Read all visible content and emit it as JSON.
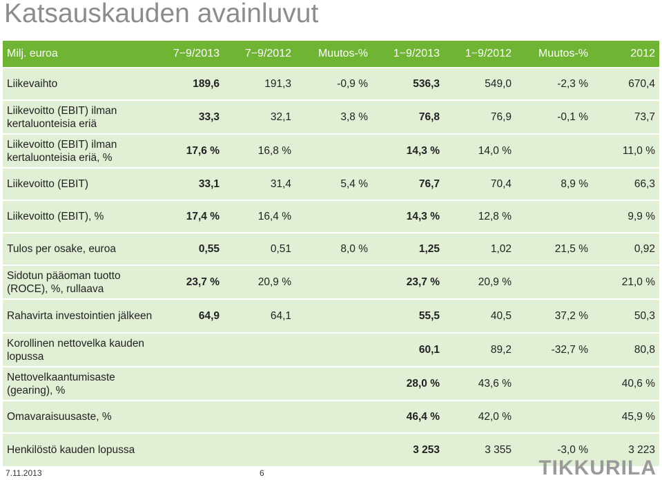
{
  "title": "Katsauskauden avainluvut",
  "header": {
    "label": "Milj. euroa",
    "cols": [
      "7−9/2013",
      "7−9/2012",
      "Muutos-%",
      "1−9/2013",
      "1−9/2012",
      "Muutos-%",
      "2012"
    ]
  },
  "rows": [
    {
      "label": "Liikevaihto",
      "values": [
        "189,6",
        "191,3",
        "-0,9 %",
        "536,3",
        "549,0",
        "-2,3 %",
        "670,4"
      ]
    },
    {
      "label": "Liikevoitto (EBIT) ilman kertaluonteisia eriä",
      "values": [
        "33,3",
        "32,1",
        "3,8 %",
        "76,8",
        "76,9",
        "-0,1 %",
        "73,7"
      ]
    },
    {
      "label": "Liikevoitto (EBIT) ilman kertaluonteisia eriä, %",
      "values": [
        "17,6 %",
        "16,8 %",
        "",
        "14,3 %",
        "14,0 %",
        "",
        "11,0 %"
      ]
    },
    {
      "label": "Liikevoitto (EBIT)",
      "values": [
        "33,1",
        "31,4",
        "5,4 %",
        "76,7",
        "70,4",
        "8,9 %",
        "66,3"
      ]
    },
    {
      "label": "Liikevoitto (EBIT), %",
      "values": [
        "17,4 %",
        "16,4 %",
        "",
        "14,3 %",
        "12,8 %",
        "",
        "9,9 %"
      ]
    },
    {
      "label": "Tulos per osake, euroa",
      "values": [
        "0,55",
        "0,51",
        "8,0 %",
        "1,25",
        "1,02",
        "21,5 %",
        "0,92"
      ]
    },
    {
      "label": "Sidotun pääoman tuotto (ROCE), %, rullaava",
      "values": [
        "23,7 %",
        "20,9 %",
        "",
        "23,7 %",
        "20,9 %",
        "",
        "21,0 %"
      ]
    },
    {
      "label": "Rahavirta investointien jälkeen",
      "values": [
        "64,9",
        "64,1",
        "",
        "55,5",
        "40,5",
        "37,2 %",
        "50,3"
      ]
    },
    {
      "label": "Korollinen nettovelka kauden lopussa",
      "values": [
        "",
        "",
        "",
        "60,1",
        "89,2",
        "-32,7 %",
        "80,8"
      ]
    },
    {
      "label": "Nettovelkaantumisaste (gearing), %",
      "values": [
        "",
        "",
        "",
        "28,0 %",
        "43,6 %",
        "",
        "40,6 %"
      ]
    },
    {
      "label": "Omavaraisuusaste, %",
      "values": [
        "",
        "",
        "",
        "46,4 %",
        "42,0 %",
        "",
        "45,9 %"
      ]
    },
    {
      "label": "Henkilöstö kauden lopussa",
      "values": [
        "",
        "",
        "",
        "3 253",
        "3 355",
        "-3,0 %",
        "3 223"
      ]
    }
  ],
  "footer": {
    "date": "7.11.2013",
    "page": "6",
    "logo": "TIKKURILA"
  }
}
